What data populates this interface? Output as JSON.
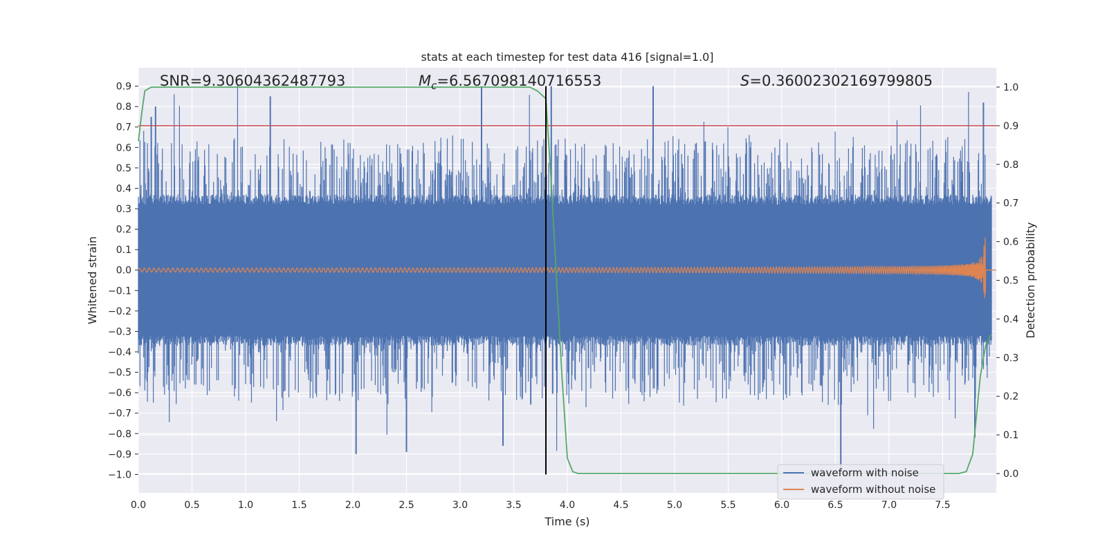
{
  "chart_data": {
    "type": "line",
    "title": "stats at each timestep for test data 416 [signal=1.0]",
    "xlabel": "Time (s)",
    "ylabel_left": "Whitened strain",
    "ylabel_right": "Detection probability",
    "xlim": [
      0.0,
      8.0
    ],
    "ylim_left": [
      -1.09,
      0.99
    ],
    "ylim_right": [
      -0.05,
      1.05
    ],
    "x_ticks": [
      0.0,
      0.5,
      1.0,
      1.5,
      2.0,
      2.5,
      3.0,
      3.5,
      4.0,
      4.5,
      5.0,
      5.5,
      6.0,
      6.5,
      7.0,
      7.5
    ],
    "x_tick_labels": [
      "0.0",
      "0.5",
      "1.0",
      "1.5",
      "2.0",
      "2.5",
      "3.0",
      "3.5",
      "4.0",
      "4.5",
      "5.0",
      "5.5",
      "6.0",
      "6.5",
      "7.0",
      "7.5"
    ],
    "y_left_ticks": [
      0.9,
      0.8,
      0.7,
      0.6,
      0.5,
      0.4,
      0.3,
      0.2,
      0.1,
      0.0,
      -0.1,
      -0.2,
      -0.3,
      -0.4,
      -0.5,
      -0.6,
      -0.7,
      -0.8,
      -0.9,
      -1.0
    ],
    "y_left_tick_labels": [
      "0.9",
      "0.8",
      "0.7",
      "0.6",
      "0.5",
      "0.4",
      "0.3",
      "0.2",
      "0.1",
      "0.0",
      "−0.1",
      "−0.2",
      "−0.3",
      "−0.4",
      "−0.5",
      "−0.6",
      "−0.7",
      "−0.8",
      "−0.9",
      "−1.0"
    ],
    "y_right_ticks": [
      1.0,
      0.9,
      0.8,
      0.7,
      0.6,
      0.5,
      0.4,
      0.3,
      0.2,
      0.1,
      0.0
    ],
    "y_right_tick_labels": [
      "1.0",
      "0.9",
      "0.8",
      "0.7",
      "0.6",
      "0.5",
      "0.4",
      "0.3",
      "0.2",
      "0.1",
      "0.0"
    ],
    "annotations": {
      "snr": "SNR=9.30604362487793",
      "mc_symbol": "M",
      "mc_subscript": "c",
      "mc_value": "=6.567098140716553",
      "s_symbol": "S",
      "s_value": "=0.36002302169799805"
    },
    "threshold_right": 0.9,
    "event_time": 3.8,
    "series": [
      {
        "name": "waveform with noise",
        "color": "#4c72b0",
        "description": "noisy whitened strain, roughly +/-0.35 dense band with spikes up to ~0.9 and down to ~-0.97",
        "spike_peaks": [
          {
            "t": 0.12,
            "v": 0.75
          },
          {
            "t": 0.16,
            "v": 0.8
          },
          {
            "t": 1.23,
            "v": 0.85
          },
          {
            "t": 3.2,
            "v": 0.9
          },
          {
            "t": 3.85,
            "v": 0.9
          },
          {
            "t": 4.8,
            "v": 0.9
          },
          {
            "t": 7.88,
            "v": 0.82
          },
          {
            "t": 2.03,
            "v": -0.9
          },
          {
            "t": 2.5,
            "v": -0.89
          },
          {
            "t": 3.4,
            "v": -0.86
          },
          {
            "t": 6.55,
            "v": -0.97
          },
          {
            "t": 7.8,
            "v": -0.82
          }
        ]
      },
      {
        "name": "waveform without noise",
        "color": "#dd8452",
        "description": "chirp: amplitude ~0.01 at t=0 rising to ~0.2 near t=7.9 then zero",
        "amp_start": 0.01,
        "amp_peak": 0.22,
        "merger_time": 7.9
      },
      {
        "name": "Detection probability",
        "color": "#55a868",
        "axis": "right",
        "t": [
          0.0,
          0.03,
          0.06,
          0.12,
          0.2,
          1.0,
          2.0,
          3.0,
          3.5,
          3.6,
          3.65,
          3.72,
          3.8,
          3.85,
          3.9,
          3.95,
          4.0,
          4.05,
          4.1,
          4.15,
          5.0,
          6.0,
          7.0,
          7.65,
          7.72,
          7.78,
          7.85,
          7.9,
          7.95
        ],
        "p": [
          0.86,
          0.93,
          0.99,
          1.0,
          1.0,
          1.0,
          1.0,
          1.0,
          1.0,
          1.0,
          1.0,
          0.99,
          0.97,
          0.75,
          0.5,
          0.25,
          0.04,
          0.005,
          0.0,
          0.0,
          0.0,
          0.0,
          0.0,
          0.0,
          0.005,
          0.05,
          0.25,
          0.33,
          0.36
        ]
      }
    ],
    "legend": {
      "placement": "bottom-right",
      "entries": [
        {
          "label": "waveform with noise",
          "color": "#4c72b0"
        },
        {
          "label": "waveform without noise",
          "color": "#dd8452"
        }
      ]
    },
    "colors": {
      "background": "#eaeaf2",
      "grid": "#ffffff",
      "threshold": "#c44e52",
      "event_line": "#000000"
    }
  }
}
